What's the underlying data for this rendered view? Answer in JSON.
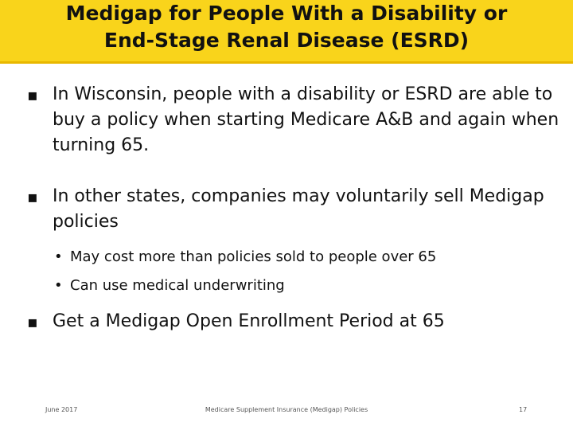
{
  "header": {
    "title_lines": [
      "Medigap for People With a Disability or",
      "End-Stage Renal Disease (ESRD)"
    ]
  },
  "bullets": [
    {
      "text": "In Wisconsin, people with a disability or ESRD are able to buy a policy when starting Medicare A&B and again when turning 65."
    },
    {
      "text": "In other states, companies may voluntarily sell Medigap policies",
      "sub": [
        "May cost more than policies sold to people over 65",
        "Can use medical underwriting"
      ]
    },
    {
      "text": "Get a Medigap Open Enrollment Period at 65"
    }
  ],
  "footer": {
    "date": "June 2017",
    "center": "Medicare Supplement Insurance (Medigap) Policies",
    "page": "17"
  }
}
